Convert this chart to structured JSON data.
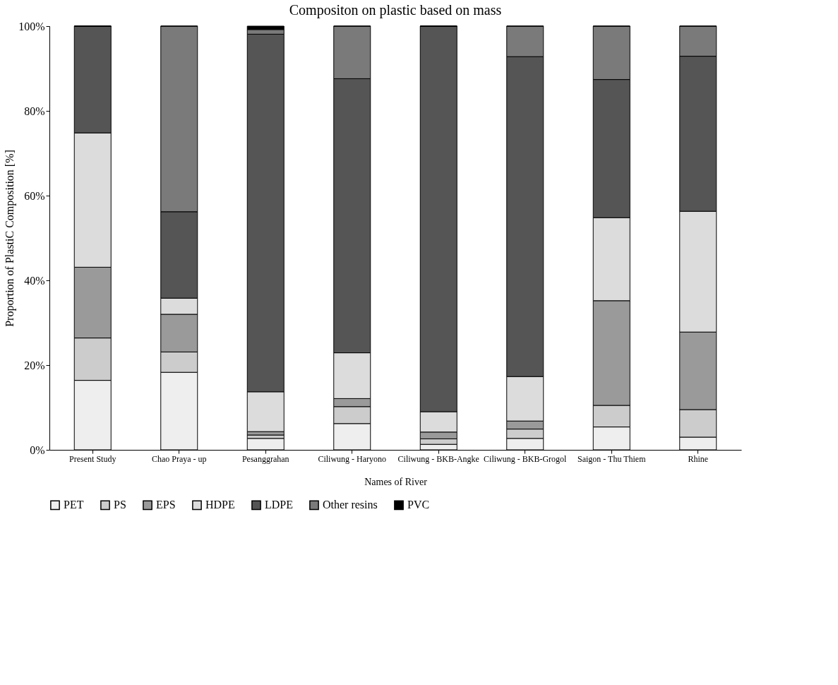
{
  "chart_data": {
    "type": "bar",
    "stacked": true,
    "title": "Compositon on plastic based on mass",
    "xlabel": "Names of River",
    "ylabel": "Proportion of PlastiC Composition [%]",
    "categories": [
      "Present Study",
      "Chao Praya - up",
      "Pesanggrahan",
      "Ciliwung - Haryono",
      "Ciliwung - BKB-Angke",
      "Ciliwung - BKB-Grogol",
      "Saigon - Thu Thiem",
      "Rhine"
    ],
    "series": [
      {
        "name": "PET",
        "color": "#eeeeee",
        "values": [
          16.4,
          18.3,
          2.7,
          6.2,
          1.3,
          2.7,
          5.4,
          3.0
        ]
      },
      {
        "name": "PS",
        "color": "#cccccc",
        "values": [
          10.0,
          4.8,
          0.8,
          4.0,
          1.3,
          2.2,
          5.1,
          6.5
        ]
      },
      {
        "name": "EPS",
        "color": "#9a9a9a",
        "values": [
          16.7,
          8.9,
          0.8,
          1.9,
          1.6,
          1.9,
          24.7,
          18.3
        ]
      },
      {
        "name": "HDPE",
        "color": "#dcdcdc",
        "values": [
          31.7,
          3.8,
          9.4,
          10.8,
          4.8,
          10.5,
          19.6,
          28.5
        ]
      },
      {
        "name": "LDPE",
        "color": "#555555",
        "values": [
          25.2,
          20.4,
          84.4,
          64.7,
          91.0,
          75.5,
          32.6,
          36.6
        ]
      },
      {
        "name": "Other resins",
        "color": "#7a7a7a",
        "values": [
          0,
          43.8,
          1.1,
          12.4,
          0,
          7.2,
          12.6,
          7.1
        ]
      },
      {
        "name": "PVC",
        "color": "#000000",
        "values": [
          0,
          0,
          0.8,
          0,
          0,
          0,
          0,
          0
        ]
      }
    ],
    "ylim": [
      0,
      100
    ],
    "yticks": [
      {
        "value": 0,
        "label": "0%"
      },
      {
        "value": 20,
        "label": "20%"
      },
      {
        "value": 40,
        "label": "40%"
      },
      {
        "value": 60,
        "label": "60%"
      },
      {
        "value": 80,
        "label": "80%"
      },
      {
        "value": 100,
        "label": "100%"
      }
    ],
    "grid": false,
    "legend": "bottom"
  }
}
